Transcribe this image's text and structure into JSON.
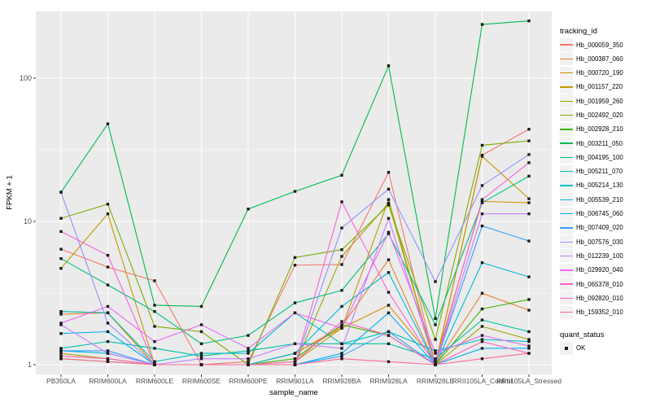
{
  "figure": {
    "background": "#FFFFFF",
    "panel_background": "#EBEBEB",
    "grid_color": "#FFFFFF",
    "axis_text_color": "#4D4D4D",
    "axis_title_color": "#000000",
    "point_color": "#1A1A1A",
    "legend_key_background": "#F2F2F2"
  },
  "legend": {
    "tracking_title": "tracking_id",
    "quant_title": "quant_status",
    "quant_ok_label": "OK"
  },
  "chart_data": {
    "type": "line",
    "title": "",
    "xlabel": "sample_name",
    "ylabel": "FPKM + 1",
    "y_scale": "log10",
    "y_tick_labels": [
      "1",
      "10",
      "100"
    ],
    "y_tick_values": [
      1,
      10,
      100
    ],
    "y_minor_tick_values": [
      3.162,
      31.62
    ],
    "ylim": [
      0.93,
      300
    ],
    "grid": true,
    "legend_position": "right",
    "point_shape": "black-square",
    "point_legend_label": "OK",
    "categories": [
      "PB350LA",
      "RRIM600LA",
      "RRIM600LE",
      "RRIM600SE",
      "RRIM600PE",
      "RRIM901LA",
      "RRIM928BA",
      "RRIM928LA",
      "RRIM928LE",
      "RRII105LA_Control",
      "RRII105LA_Stressed"
    ],
    "series": [
      {
        "name": "Hb_000059_350",
        "color": "#F8766D",
        "values": [
          6.4,
          4.8,
          3.85,
          1.0,
          1.05,
          4.95,
          5.0,
          22.0,
          1.0,
          29.0,
          44.0
        ]
      },
      {
        "name": "Hb_000387_060",
        "color": "#EA8331",
        "values": [
          2.25,
          2.3,
          1.0,
          1.0,
          1.0,
          1.2,
          1.85,
          5.4,
          1.0,
          3.15,
          2.4
        ]
      },
      {
        "name": "Hb_000720_190",
        "color": "#D89000",
        "values": [
          2.35,
          2.3,
          1.0,
          1.0,
          1.0,
          1.2,
          1.8,
          2.6,
          1.05,
          13.8,
          13.5
        ]
      },
      {
        "name": "Hb_001157_220",
        "color": "#C09B00",
        "values": [
          4.7,
          11.3,
          1.0,
          1.0,
          1.0,
          1.05,
          1.8,
          14.2,
          1.0,
          28.5,
          14.4
        ]
      },
      {
        "name": "Hb_001959_260",
        "color": "#A3A500",
        "values": [
          1.2,
          1.1,
          1.0,
          1.0,
          1.0,
          1.0,
          5.7,
          13.4,
          1.0,
          1.85,
          1.5
        ]
      },
      {
        "name": "Hb_002492_020",
        "color": "#7CAE00",
        "values": [
          10.5,
          13.2,
          1.85,
          1.7,
          1.0,
          5.6,
          6.35,
          13.0,
          1.5,
          34.0,
          36.5
        ]
      },
      {
        "name": "Hb_002928_210",
        "color": "#39B600",
        "values": [
          1.1,
          1.05,
          1.0,
          1.0,
          1.0,
          1.1,
          1.9,
          1.6,
          1.0,
          2.45,
          2.85
        ]
      },
      {
        "name": "Hb_003211_050",
        "color": "#00BB4E",
        "values": [
          16.0,
          48.0,
          2.6,
          2.55,
          12.2,
          16.2,
          21.0,
          122.0,
          2.1,
          237.0,
          251.0
        ]
      },
      {
        "name": "Hb_004195_100",
        "color": "#00BF7D",
        "values": [
          5.5,
          3.6,
          2.35,
          1.4,
          1.6,
          2.7,
          3.3,
          8.2,
          1.9,
          13.5,
          20.7
        ]
      },
      {
        "name": "Hb_005211_070",
        "color": "#00C1A3",
        "values": [
          1.3,
          1.45,
          1.3,
          1.15,
          1.25,
          1.4,
          1.4,
          1.4,
          1.1,
          2.05,
          1.7
        ]
      },
      {
        "name": "Hb_005214_130",
        "color": "#00BFC4",
        "values": [
          2.35,
          2.3,
          1.05,
          1.2,
          1.2,
          2.3,
          1.4,
          1.7,
          1.25,
          1.5,
          1.45
        ]
      },
      {
        "name": "Hb_005539_210",
        "color": "#00BAE0",
        "values": [
          1.25,
          1.2,
          1.0,
          1.0,
          1.0,
          1.2,
          2.55,
          4.4,
          1.0,
          5.15,
          4.1
        ]
      },
      {
        "name": "Hb_006745_060",
        "color": "#00B0F6",
        "values": [
          1.65,
          1.7,
          1.0,
          1.0,
          1.0,
          1.0,
          1.2,
          2.3,
          1.0,
          1.3,
          1.3
        ]
      },
      {
        "name": "Hb_007409_020",
        "color": "#35A2FF",
        "values": [
          1.25,
          1.25,
          1.0,
          1.0,
          1.0,
          1.0,
          1.15,
          1.7,
          1.0,
          9.3,
          7.3
        ]
      },
      {
        "name": "Hb_007576_030",
        "color": "#9590FF",
        "values": [
          16.0,
          1.95,
          1.0,
          1.0,
          1.0,
          1.0,
          9.0,
          16.8,
          3.8,
          17.8,
          29.3
        ]
      },
      {
        "name": "Hb_012239_100",
        "color": "#C77CFF",
        "values": [
          1.9,
          1.2,
          1.0,
          1.1,
          1.1,
          1.4,
          1.3,
          10.5,
          1.0,
          11.3,
          11.3
        ]
      },
      {
        "name": "Hb_029920_040",
        "color": "#E76BF3",
        "values": [
          1.95,
          2.55,
          1.45,
          1.9,
          1.3,
          2.3,
          1.8,
          8.4,
          1.2,
          1.6,
          1.35
        ]
      },
      {
        "name": "Hb_065378_010",
        "color": "#FA62DB",
        "values": [
          8.5,
          5.8,
          1.0,
          1.0,
          1.0,
          1.0,
          13.7,
          3.2,
          1.0,
          14.2,
          25.7
        ]
      },
      {
        "name": "Hb_092820_010",
        "color": "#FF62BC",
        "values": [
          1.15,
          1.1,
          1.0,
          1.0,
          1.0,
          1.05,
          2.0,
          1.6,
          1.0,
          1.45,
          1.2
        ]
      },
      {
        "name": "Hb_159352_010",
        "color": "#FF6A98",
        "values": [
          1.1,
          1.05,
          1.0,
          1.0,
          1.0,
          1.0,
          1.1,
          1.05,
          1.0,
          1.1,
          1.2
        ]
      }
    ]
  }
}
